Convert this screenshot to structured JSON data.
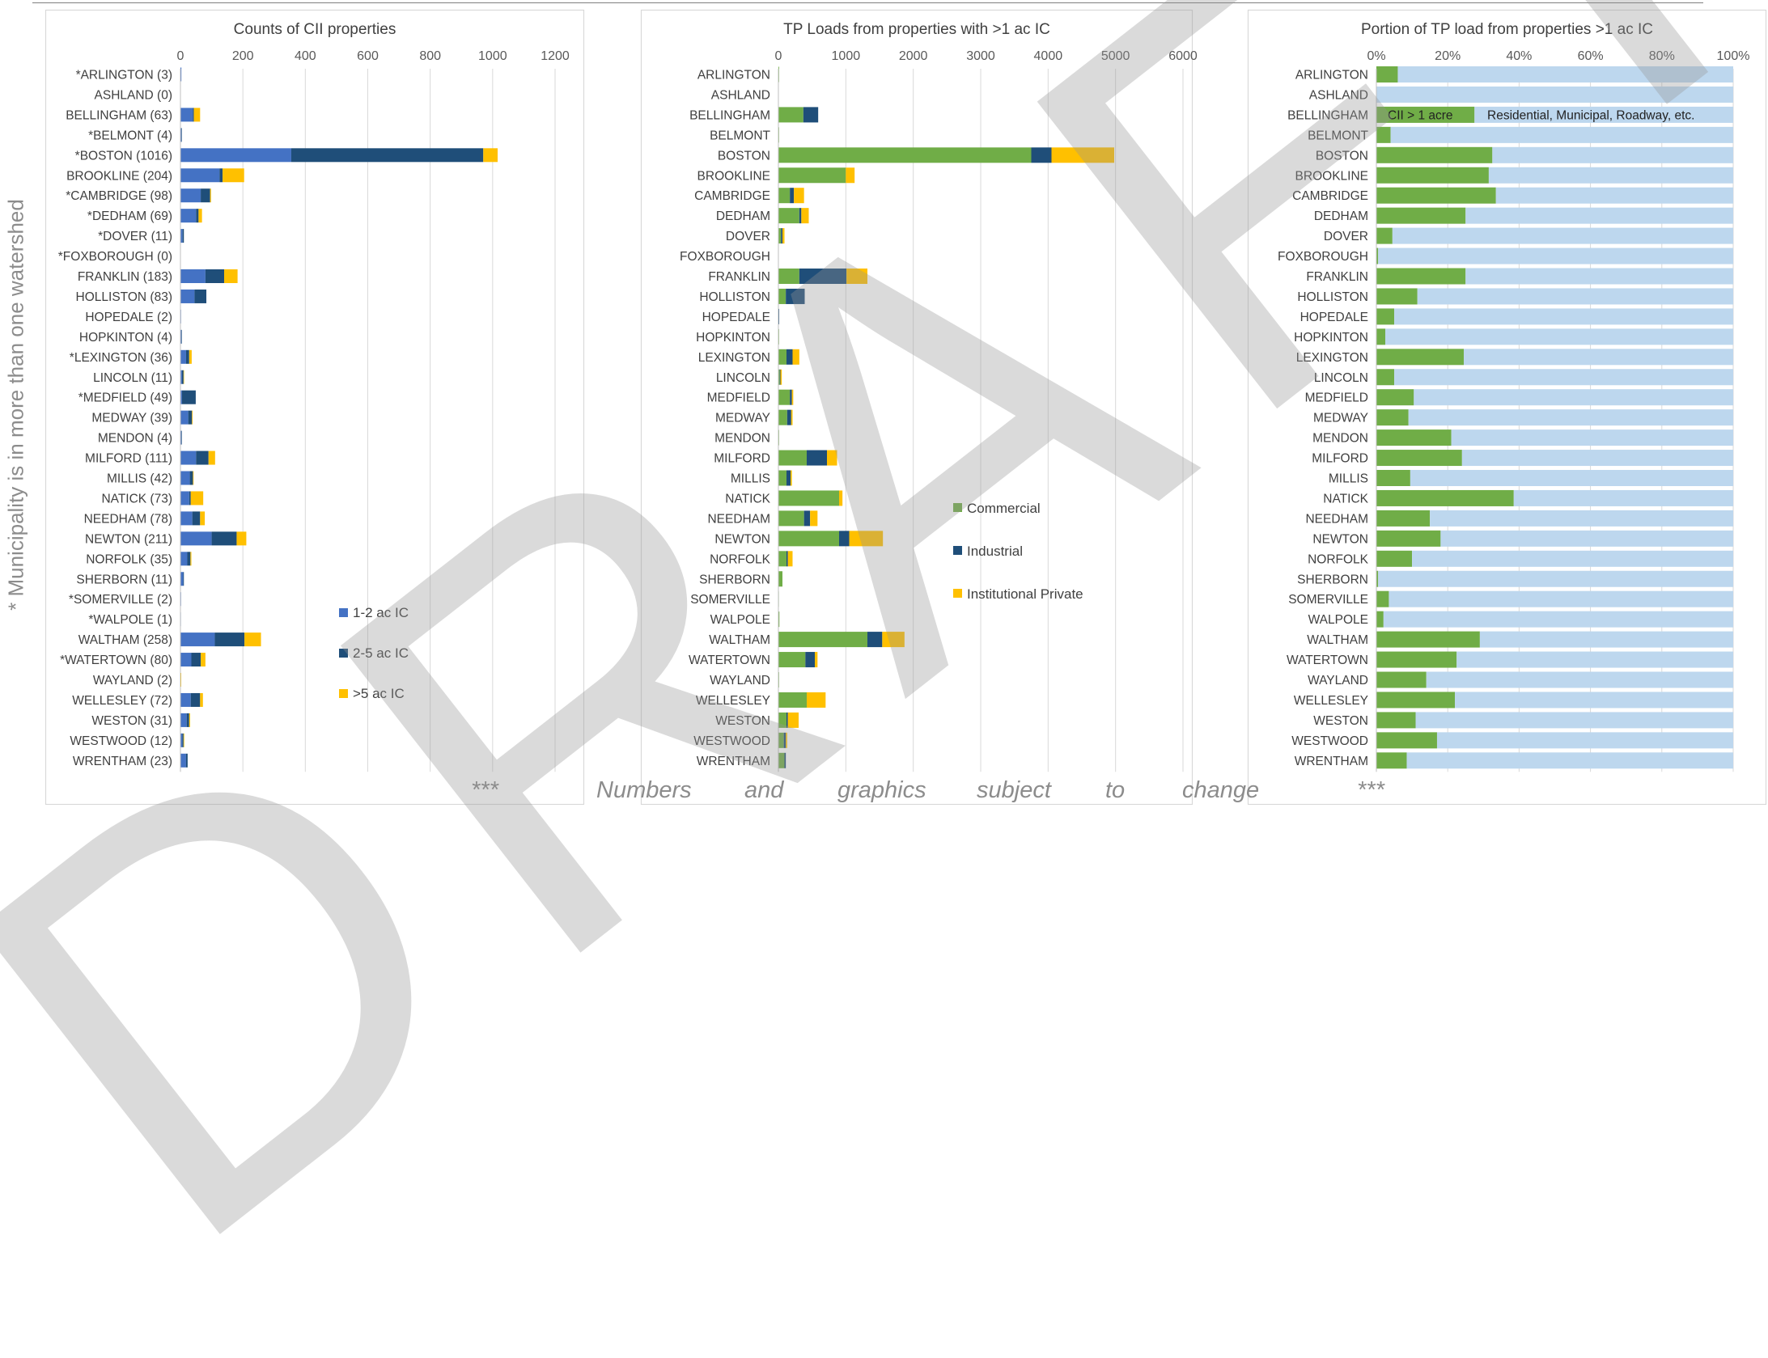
{
  "side_note": "* Municipality is in more than one watershed",
  "watermark": "DRAFT",
  "footer": {
    "stars_left": "***",
    "words": [
      "Numbers",
      "and",
      "graphics",
      "subject",
      "to",
      "change"
    ],
    "stars_right": "***"
  },
  "colors": {
    "ac12": "#4472c4",
    "ac25": "#1f4e79",
    "ac5": "#ffc000",
    "commercial": "#70ad47",
    "industrial": "#1f4e79",
    "institutional": "#ffc000",
    "cii": "#70ad47",
    "residential": "#bdd7ee"
  },
  "chart_data": [
    {
      "type": "bar",
      "orientation": "horizontal",
      "stacked": true,
      "title": "Counts of CII properties",
      "xlim": [
        0,
        1200
      ],
      "xticks": [
        0,
        200,
        400,
        600,
        800,
        1000,
        1200
      ],
      "legend_position": "bottom-right",
      "categories": [
        "*ARLINGTON (3)",
        "ASHLAND (0)",
        "BELLINGHAM (63)",
        "*BELMONT (4)",
        "*BOSTON (1016)",
        "BROOKLINE (204)",
        "*CAMBRIDGE (98)",
        "*DEDHAM (69)",
        "*DOVER (11)",
        "*FOXBOROUGH (0)",
        "FRANKLIN (183)",
        "HOLLISTON (83)",
        "HOPEDALE (2)",
        "HOPKINTON (4)",
        "*LEXINGTON (36)",
        "LINCOLN (11)",
        "*MEDFIELD (49)",
        "MEDWAY (39)",
        "MENDON (4)",
        "MILFORD (111)",
        "MILLIS (42)",
        "NATICK (73)",
        "NEEDHAM (78)",
        "NEWTON (211)",
        "NORFOLK (35)",
        "SHERBORN (11)",
        "*SOMERVILLE (2)",
        "*WALPOLE (1)",
        "WALTHAM (258)",
        "*WATERTOWN (80)",
        "WAYLAND (2)",
        "WELLESLEY (72)",
        "WESTON (31)",
        "WESTWOOD (12)",
        "WRENTHAM (23)"
      ],
      "series": [
        {
          "name": "1-2 ac IC",
          "values": [
            3,
            0,
            40,
            3,
            355,
            125,
            65,
            50,
            7,
            0,
            80,
            45,
            2,
            3,
            18,
            5,
            5,
            25,
            3,
            50,
            30,
            28,
            38,
            100,
            22,
            9,
            2,
            1,
            110,
            35,
            1,
            33,
            20,
            6,
            18
          ]
        },
        {
          "name": "2-5 ac IC",
          "values": [
            0,
            0,
            3,
            1,
            615,
            10,
            30,
            8,
            4,
            0,
            60,
            38,
            0,
            1,
            10,
            5,
            44,
            12,
            1,
            40,
            10,
            5,
            25,
            80,
            10,
            2,
            0,
            0,
            95,
            30,
            0,
            30,
            8,
            4,
            5
          ]
        },
        {
          "name": ">5 ac IC",
          "values": [
            0,
            0,
            20,
            0,
            46,
            69,
            3,
            11,
            0,
            0,
            43,
            0,
            0,
            0,
            8,
            1,
            0,
            2,
            0,
            21,
            2,
            40,
            15,
            31,
            3,
            0,
            0,
            0,
            53,
            15,
            1,
            9,
            3,
            2,
            0
          ]
        }
      ]
    },
    {
      "type": "bar",
      "orientation": "horizontal",
      "stacked": true,
      "title": "TP Loads from properties with >1 ac IC",
      "xlim": [
        0,
        6000
      ],
      "xticks": [
        0,
        1000,
        2000,
        3000,
        4000,
        5000,
        6000
      ],
      "legend_position": "center-right",
      "categories": [
        "ARLINGTON",
        "ASHLAND",
        "BELLINGHAM",
        "BELMONT",
        "BOSTON",
        "BROOKLINE",
        "CAMBRIDGE",
        "DEDHAM",
        "DOVER",
        "FOXBOROUGH",
        "FRANKLIN",
        "HOLLISTON",
        "HOPEDALE",
        "HOPKINTON",
        "LEXINGTON",
        "LINCOLN",
        "MEDFIELD",
        "MEDWAY",
        "MENDON",
        "MILFORD",
        "MILLIS",
        "NATICK",
        "NEEDHAM",
        "NEWTON",
        "NORFOLK",
        "SHERBORN",
        "SOMERVILLE",
        "WALPOLE",
        "WALTHAM",
        "WATERTOWN",
        "WAYLAND",
        "WELLESLEY",
        "WESTON",
        "WESTWOOD",
        "WRENTHAM"
      ],
      "series": [
        {
          "name": "Commercial",
          "values": [
            10,
            0,
            370,
            10,
            3750,
            1000,
            170,
            310,
            40,
            0,
            310,
            110,
            5,
            10,
            120,
            20,
            170,
            130,
            10,
            420,
            120,
            900,
            380,
            900,
            120,
            60,
            5,
            15,
            1320,
            400,
            10,
            420,
            120,
            80,
            90
          ]
        },
        {
          "name": "Industrial",
          "values": [
            0,
            0,
            220,
            0,
            300,
            0,
            60,
            30,
            20,
            0,
            700,
            280,
            5,
            0,
            90,
            10,
            30,
            60,
            0,
            300,
            60,
            0,
            90,
            150,
            20,
            0,
            0,
            0,
            220,
            140,
            0,
            0,
            20,
            30,
            20
          ]
        },
        {
          "name": "Institutional Private",
          "values": [
            0,
            0,
            0,
            0,
            930,
            130,
            150,
            110,
            30,
            0,
            310,
            0,
            0,
            0,
            100,
            20,
            20,
            20,
            0,
            150,
            20,
            50,
            110,
            500,
            70,
            0,
            0,
            0,
            330,
            40,
            0,
            280,
            160,
            20,
            0
          ]
        }
      ]
    },
    {
      "type": "bar",
      "orientation": "horizontal",
      "stacked": true,
      "percent": true,
      "title": "Portion of TP load from properties >1 ac IC",
      "xlim": [
        0,
        100
      ],
      "xticks": [
        "0%",
        "20%",
        "40%",
        "60%",
        "80%",
        "100%"
      ],
      "categories": [
        "ARLINGTON",
        "ASHLAND",
        "BELLINGHAM",
        "BELMONT",
        "BOSTON",
        "BROOKLINE",
        "CAMBRIDGE",
        "DEDHAM",
        "DOVER",
        "FOXBOROUGH",
        "FRANKLIN",
        "HOLLISTON",
        "HOPEDALE",
        "HOPKINTON",
        "LEXINGTON",
        "LINCOLN",
        "MEDFIELD",
        "MEDWAY",
        "MENDON",
        "MILFORD",
        "MILLIS",
        "NATICK",
        "NEEDHAM",
        "NEWTON",
        "NORFOLK",
        "SHERBORN",
        "SOMERVILLE",
        "WALPOLE",
        "WALTHAM",
        "WATERTOWN",
        "WAYLAND",
        "WELLESLEY",
        "WESTON",
        "WESTWOOD",
        "WRENTHAM"
      ],
      "series": [
        {
          "name": "CII > 1 acre",
          "values": [
            6,
            0,
            27.5,
            4,
            32.5,
            31.5,
            33.5,
            25,
            4.5,
            0.5,
            25,
            11.5,
            5,
            2.5,
            24.5,
            5,
            10.5,
            9,
            21,
            24,
            9.5,
            38.5,
            15,
            18,
            10,
            0.5,
            3.5,
            2,
            29,
            22.5,
            14,
            22,
            11,
            17,
            8.5
          ]
        },
        {
          "name": "Residential, Municipal, Roadway, etc.",
          "values": [
            94,
            100,
            72.5,
            96,
            67.5,
            68.5,
            66.5,
            75,
            95.5,
            99.5,
            75,
            88.5,
            95,
            97.5,
            75.5,
            95,
            89.5,
            91,
            79,
            76,
            90.5,
            61.5,
            85,
            82,
            90,
            99.5,
            96.5,
            98,
            71,
            77.5,
            86,
            78,
            89,
            83,
            91.5
          ]
        }
      ]
    }
  ]
}
